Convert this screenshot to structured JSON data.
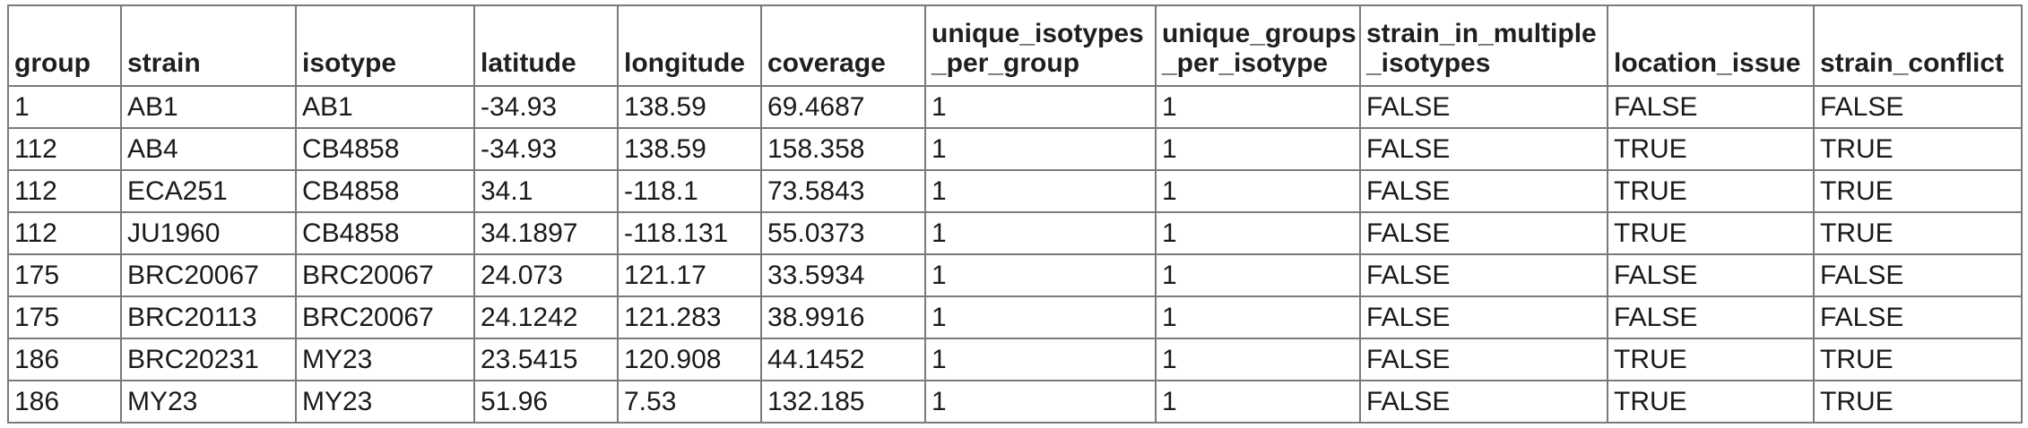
{
  "table": {
    "headers": [
      [
        "group"
      ],
      [
        "strain"
      ],
      [
        "isotype"
      ],
      [
        "latitude"
      ],
      [
        "longitude"
      ],
      [
        "coverage"
      ],
      [
        "unique_isotypes",
        "_per_group"
      ],
      [
        "unique_groups",
        "_per_isotype"
      ],
      [
        "strain_in_multiple",
        "_isotypes"
      ],
      [
        "location_issue"
      ],
      [
        "strain_conflict"
      ]
    ],
    "rows": [
      [
        "1",
        "AB1",
        "AB1",
        "-34.93",
        "138.59",
        "69.4687",
        "1",
        "1",
        "FALSE",
        "FALSE",
        "FALSE"
      ],
      [
        "112",
        "AB4",
        "CB4858",
        "-34.93",
        "138.59",
        "158.358",
        "1",
        "1",
        "FALSE",
        "TRUE",
        "TRUE"
      ],
      [
        "112",
        "ECA251",
        "CB4858",
        "34.1",
        "-118.1",
        "73.5843",
        "1",
        "1",
        "FALSE",
        "TRUE",
        "TRUE"
      ],
      [
        "112",
        "JU1960",
        "CB4858",
        "34.1897",
        "-118.131",
        "55.0373",
        "1",
        "1",
        "FALSE",
        "TRUE",
        "TRUE"
      ],
      [
        "175",
        "BRC20067",
        "BRC20067",
        "24.073",
        "121.17",
        "33.5934",
        "1",
        "1",
        "FALSE",
        "FALSE",
        "FALSE"
      ],
      [
        "175",
        "BRC20113",
        "BRC20067",
        "24.1242",
        "121.283",
        "38.9916",
        "1",
        "1",
        "FALSE",
        "FALSE",
        "FALSE"
      ],
      [
        "186",
        "BRC20231",
        "MY23",
        "23.5415",
        "120.908",
        "44.1452",
        "1",
        "1",
        "FALSE",
        "TRUE",
        "TRUE"
      ],
      [
        "186",
        "MY23",
        "MY23",
        "51.96",
        "7.53",
        "132.185",
        "1",
        "1",
        "FALSE",
        "TRUE",
        "TRUE"
      ]
    ]
  }
}
